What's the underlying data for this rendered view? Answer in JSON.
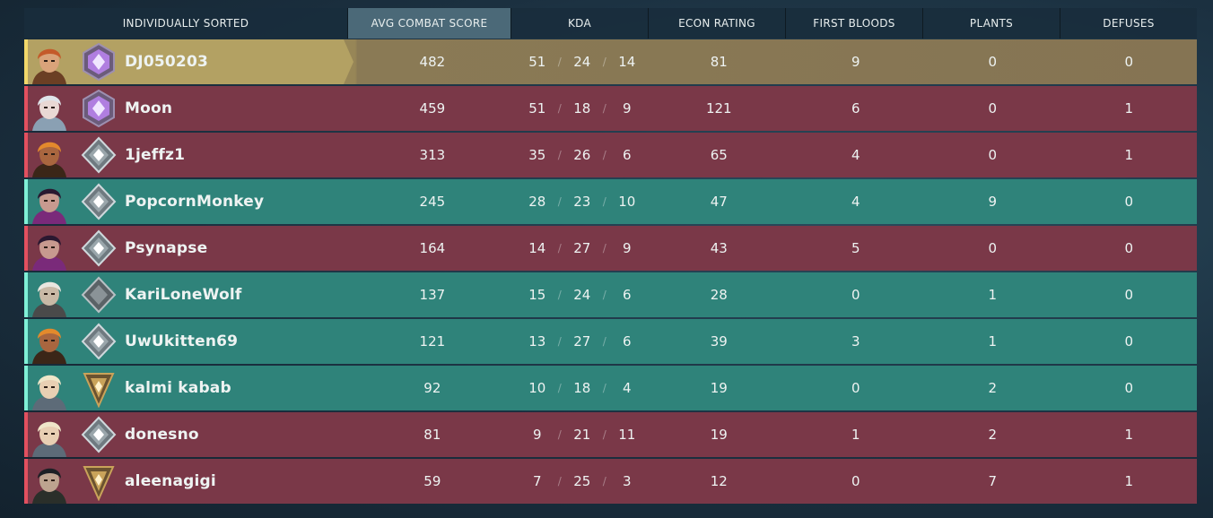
{
  "header": {
    "name_col": "INDIVIDUALLY SORTED",
    "acs": "AVG COMBAT SCORE",
    "kda": "KDA",
    "econ": "ECON RATING",
    "first_bloods": "FIRST BLOODS",
    "plants": "PLANTS",
    "defuses": "DEFUSES"
  },
  "colors": {
    "red_team": "#7a3848",
    "teal_team": "#2f837a",
    "highlight": "#b3a163",
    "sorted_header": "#4b6978"
  },
  "players": [
    {
      "name": "DJ050203",
      "team": "gold",
      "agent": "brimstone-portrait",
      "rank": "ascendant-rank-icon",
      "acs": "482",
      "k": "51",
      "d": "24",
      "a": "14",
      "econ": "81",
      "fb": "9",
      "plants": "0",
      "defuses": "0"
    },
    {
      "name": "Moon",
      "team": "red",
      "agent": "jett-portrait",
      "rank": "ascendant-rank-icon",
      "acs": "459",
      "k": "51",
      "d": "18",
      "a": "9",
      "econ": "121",
      "fb": "6",
      "plants": "0",
      "defuses": "1"
    },
    {
      "name": "1jeffz1",
      "team": "red",
      "agent": "raze-portrait",
      "rank": "platinum-rank-icon",
      "acs": "313",
      "k": "35",
      "d": "26",
      "a": "6",
      "econ": "65",
      "fb": "4",
      "plants": "0",
      "defuses": "1"
    },
    {
      "name": "PopcornMonkey",
      "team": "teal",
      "agent": "reyna-portrait",
      "rank": "platinum-rank-icon",
      "acs": "245",
      "k": "28",
      "d": "23",
      "a": "10",
      "econ": "47",
      "fb": "4",
      "plants": "9",
      "defuses": "0"
    },
    {
      "name": "Psynapse",
      "team": "red",
      "agent": "reyna-portrait",
      "rank": "platinum-rank-icon",
      "acs": "164",
      "k": "14",
      "d": "27",
      "a": "9",
      "econ": "43",
      "fb": "5",
      "plants": "0",
      "defuses": "0"
    },
    {
      "name": "KariLoneWolf",
      "team": "teal",
      "agent": "cypher-portrait",
      "rank": "silver-rank-icon",
      "acs": "137",
      "k": "15",
      "d": "24",
      "a": "6",
      "econ": "28",
      "fb": "0",
      "plants": "1",
      "defuses": "0"
    },
    {
      "name": "UwUkitten69",
      "team": "teal",
      "agent": "raze-portrait",
      "rank": "platinum-rank-icon",
      "acs": "121",
      "k": "13",
      "d": "27",
      "a": "6",
      "econ": "39",
      "fb": "3",
      "plants": "1",
      "defuses": "0"
    },
    {
      "name": "kalmi kabab",
      "team": "teal",
      "agent": "sova-portrait",
      "rank": "gold-rank-icon",
      "acs": "92",
      "k": "10",
      "d": "18",
      "a": "4",
      "econ": "19",
      "fb": "0",
      "plants": "2",
      "defuses": "0"
    },
    {
      "name": "donesno",
      "team": "red",
      "agent": "sova-portrait",
      "rank": "platinum-rank-icon",
      "acs": "81",
      "k": "9",
      "d": "21",
      "a": "11",
      "econ": "19",
      "fb": "1",
      "plants": "2",
      "defuses": "1"
    },
    {
      "name": "aleenagigi",
      "team": "red",
      "agent": "viper-portrait",
      "rank": "gold-rank-icon",
      "acs": "59",
      "k": "7",
      "d": "25",
      "a": "3",
      "econ": "12",
      "fb": "0",
      "plants": "7",
      "defuses": "1"
    }
  ]
}
